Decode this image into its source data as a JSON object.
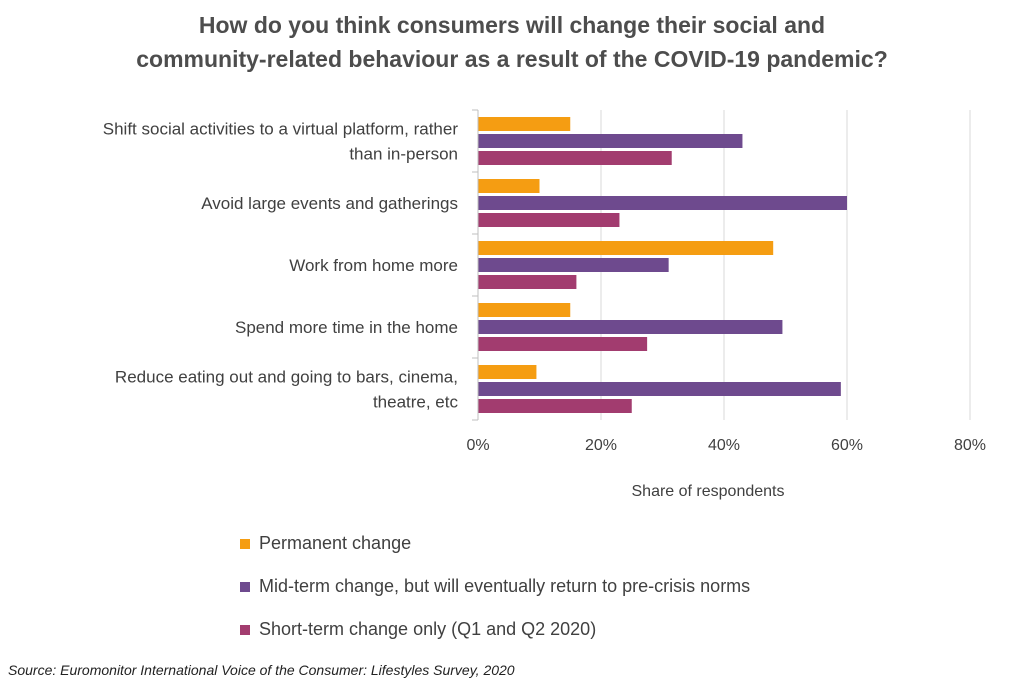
{
  "chart_data": {
    "type": "bar",
    "orientation": "horizontal",
    "title_lines": [
      "How do you think consumers will change their social and",
      "community-related behaviour as a result of the COVID-19 pandemic?"
    ],
    "categories": [
      [
        "Shift social activities to a virtual platform, rather",
        "than in-person"
      ],
      [
        "Avoid large events and gatherings"
      ],
      [
        "Work from home more"
      ],
      [
        "Spend more time in the home"
      ],
      [
        "Reduce eating out and going to bars, cinema,",
        "theatre, etc"
      ]
    ],
    "series": [
      {
        "name": "Permanent change",
        "color": "#F59D12",
        "values": [
          15,
          10,
          48,
          15,
          9.5
        ]
      },
      {
        "name": "Mid-term change, but will eventually return to pre-crisis norms",
        "color": "#6E4A8E",
        "values": [
          43,
          60,
          31,
          49.5,
          59
        ]
      },
      {
        "name": "Short-term change only (Q1 and Q2 2020)",
        "color": "#A23C6F",
        "values": [
          31.5,
          23,
          16,
          27.5,
          25
        ]
      }
    ],
    "xlim": [
      0,
      80
    ],
    "xticks": [
      "0%",
      "20%",
      "40%",
      "60%",
      "80%"
    ],
    "xlabel": "Share of respondents",
    "ylabel": "",
    "grid": true,
    "legend_position": "bottom-left"
  },
  "source": "Source: Euromonitor International Voice of the Consumer: Lifestyles Survey, 2020"
}
